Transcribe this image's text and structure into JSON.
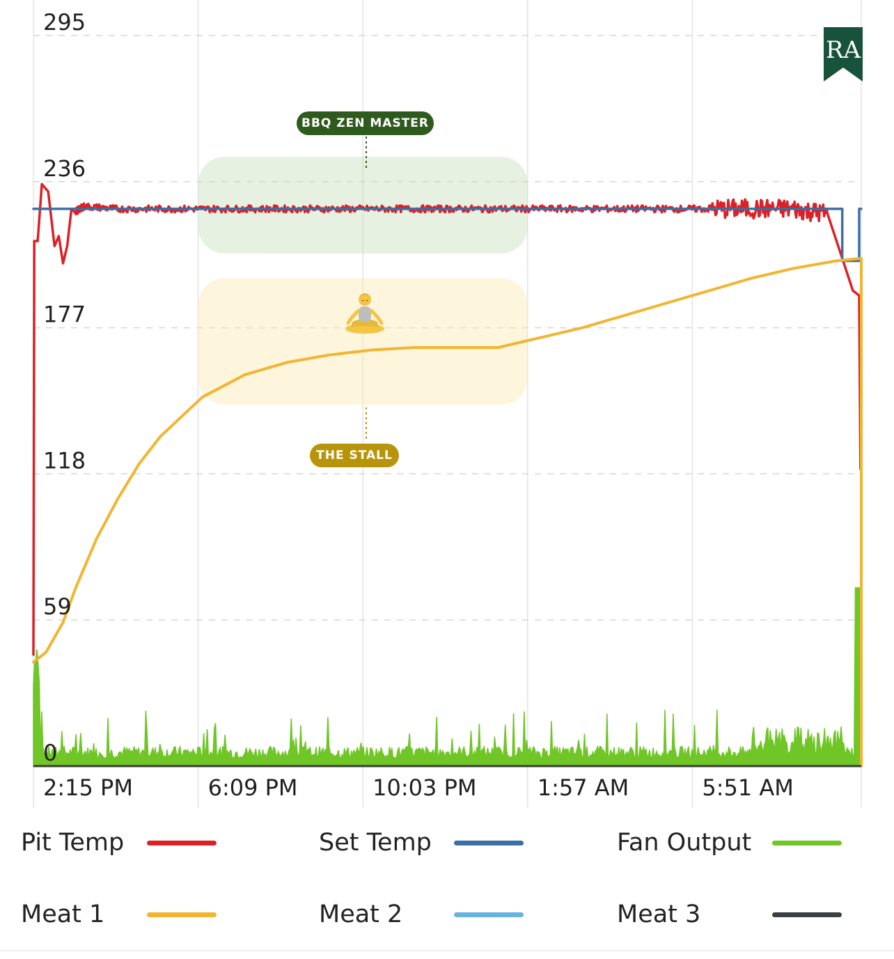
{
  "chart_data": {
    "type": "line",
    "y_ticks": [
      "295",
      "236",
      "177",
      "118",
      "59",
      "0"
    ],
    "ylim": [
      0,
      295
    ],
    "x_ticks": [
      "2:15 PM",
      "6:09 PM",
      "10:03 PM",
      "1:57 AM",
      "5:51 AM"
    ],
    "x_unit": "hours since 2:15 PM",
    "xlim": [
      0,
      19.6
    ],
    "grid": true,
    "legend_position": "bottom",
    "series": [
      {
        "name": "Pit Temp",
        "color": "#dd1f26",
        "points": [
          [
            0,
            45
          ],
          [
            0.02,
            212
          ],
          [
            0.1,
            212
          ],
          [
            0.2,
            235
          ],
          [
            0.35,
            232
          ],
          [
            0.5,
            210
          ],
          [
            0.6,
            214
          ],
          [
            0.7,
            203
          ],
          [
            0.8,
            210
          ],
          [
            0.9,
            225
          ],
          [
            1,
            224
          ],
          [
            1.2,
            226
          ],
          [
            2,
            225
          ],
          [
            3,
            225
          ],
          [
            4,
            225
          ],
          [
            5,
            225
          ],
          [
            6,
            225
          ],
          [
            7,
            225
          ],
          [
            8,
            225
          ],
          [
            9,
            225
          ],
          [
            10,
            225
          ],
          [
            11,
            225
          ],
          [
            12,
            225
          ],
          [
            13,
            225
          ],
          [
            14,
            225
          ],
          [
            15,
            225
          ],
          [
            16,
            225
          ],
          [
            17,
            225
          ],
          [
            18,
            225
          ],
          [
            18.8,
            223
          ],
          [
            19.15,
            205
          ],
          [
            19.4,
            192
          ],
          [
            19.55,
            190
          ],
          [
            19.58,
            120
          ],
          [
            19.6,
            120
          ]
        ]
      },
      {
        "name": "Set Temp",
        "color": "#3a6fa3",
        "points": [
          [
            0,
            225
          ],
          [
            19.15,
            225
          ],
          [
            19.15,
            204
          ],
          [
            19.55,
            204
          ],
          [
            19.55,
            225
          ],
          [
            19.6,
            225
          ]
        ]
      },
      {
        "name": "Fan Output",
        "color": "#6fc626",
        "summary": "0-20 baseline with spikes up to ~25; 51 at start, 72 at end"
      },
      {
        "name": "Meat 1",
        "color": "#f2b531",
        "points": [
          [
            0,
            42
          ],
          [
            0.3,
            46
          ],
          [
            0.7,
            58
          ],
          [
            1,
            72
          ],
          [
            1.5,
            92
          ],
          [
            2,
            108
          ],
          [
            2.5,
            122
          ],
          [
            3,
            133
          ],
          [
            3.5,
            141
          ],
          [
            4,
            149
          ],
          [
            5,
            158
          ],
          [
            6,
            163
          ],
          [
            7,
            166
          ],
          [
            8,
            168
          ],
          [
            9,
            169
          ],
          [
            10,
            169
          ],
          [
            11,
            169
          ],
          [
            12,
            173
          ],
          [
            13,
            177
          ],
          [
            14,
            182
          ],
          [
            15,
            187
          ],
          [
            16,
            192
          ],
          [
            17,
            197
          ],
          [
            18,
            201
          ],
          [
            19,
            204
          ],
          [
            19.6,
            205
          ],
          [
            19.6,
            0
          ]
        ]
      },
      {
        "name": "Meat 2",
        "color": "#66b3e0",
        "points": []
      },
      {
        "name": "Meat 3",
        "color": "#3d3f47",
        "points": []
      }
    ],
    "annotations": [
      {
        "label": "BBQ ZEN MASTER",
        "x_range": [
          3.9,
          11.7
        ],
        "y_range": [
          207,
          246
        ]
      },
      {
        "label": "THE STALL",
        "x_range": [
          3.9,
          11.7
        ],
        "y_range": [
          146,
          197
        ]
      }
    ]
  },
  "icons": {
    "annotation_icon": "person-in-lotus-position-icon",
    "logo": "ra-bookmark-logo"
  },
  "logo_text": "RA",
  "legend": {
    "row1": [
      {
        "label": "Pit Temp",
        "color": "#dd1f26"
      },
      {
        "label": "Set Temp",
        "color": "#3a6fa3"
      },
      {
        "label": "Fan Output",
        "color": "#6fc626"
      }
    ],
    "row2": [
      {
        "label": "Meat 1",
        "color": "#f2b531"
      },
      {
        "label": "Meat 2",
        "color": "#66b3e0"
      },
      {
        "label": "Meat 3",
        "color": "#3d3f47"
      }
    ]
  }
}
